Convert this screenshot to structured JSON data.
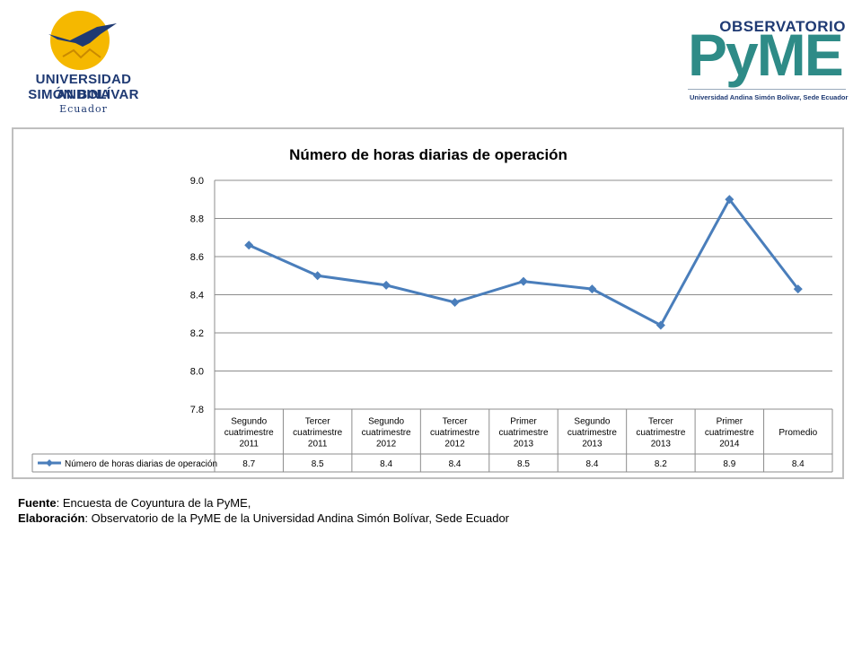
{
  "header": {
    "university_logo": {
      "line1": "UNIVERSIDAD ANDINA",
      "line2": "SIMÓN BOLÍVAR",
      "line3": "Ecuador"
    },
    "observatory_logo": {
      "top": "OBSERVATORIO",
      "main": "PyME",
      "subtitle": "Universidad Andina Simón Bolívar, Sede Ecuador"
    }
  },
  "chart_data": {
    "type": "line",
    "title": "Número de horas diarias de operación",
    "categories": [
      [
        "Segundo",
        "cuatrimestre",
        "2011"
      ],
      [
        "Tercer",
        "cuatrimestre",
        "2011"
      ],
      [
        "Segundo",
        "cuatrimestre",
        "2012"
      ],
      [
        "Tercer",
        "cuatrimestre",
        "2012"
      ],
      [
        "Primer",
        "cuatrimestre",
        "2013"
      ],
      [
        "Segundo",
        "cuatrimestre",
        "2013"
      ],
      [
        "Tercer",
        "cuatrimestre",
        "2013"
      ],
      [
        "Primer",
        "cuatrimestre",
        "2014"
      ],
      [
        "Promedio"
      ]
    ],
    "series": [
      {
        "name": "Número de horas diarias de operación",
        "values": [
          8.66,
          8.5,
          8.45,
          8.36,
          8.47,
          8.43,
          8.24,
          8.9,
          8.43
        ],
        "table_labels": [
          "8.7",
          "8.5",
          "8.4",
          "8.4",
          "8.5",
          "8.4",
          "8.2",
          "8.9",
          "8.4"
        ]
      }
    ],
    "ylim": [
      7.8,
      9.0
    ],
    "yticks": [
      "9.0",
      "8.8",
      "8.6",
      "8.4",
      "8.2",
      "8.0",
      "7.8"
    ],
    "grid": true,
    "legend": "data-table-bottom",
    "color": "#4a7ebb"
  },
  "footer": {
    "source_label": "Fuente",
    "source_text": ": Encuesta de Coyuntura de la PyME,",
    "elab_label": "Elaboración",
    "elab_text": ": Observatorio de la PyME de la Universidad Andina Simón Bolívar, Sede Ecuador"
  }
}
